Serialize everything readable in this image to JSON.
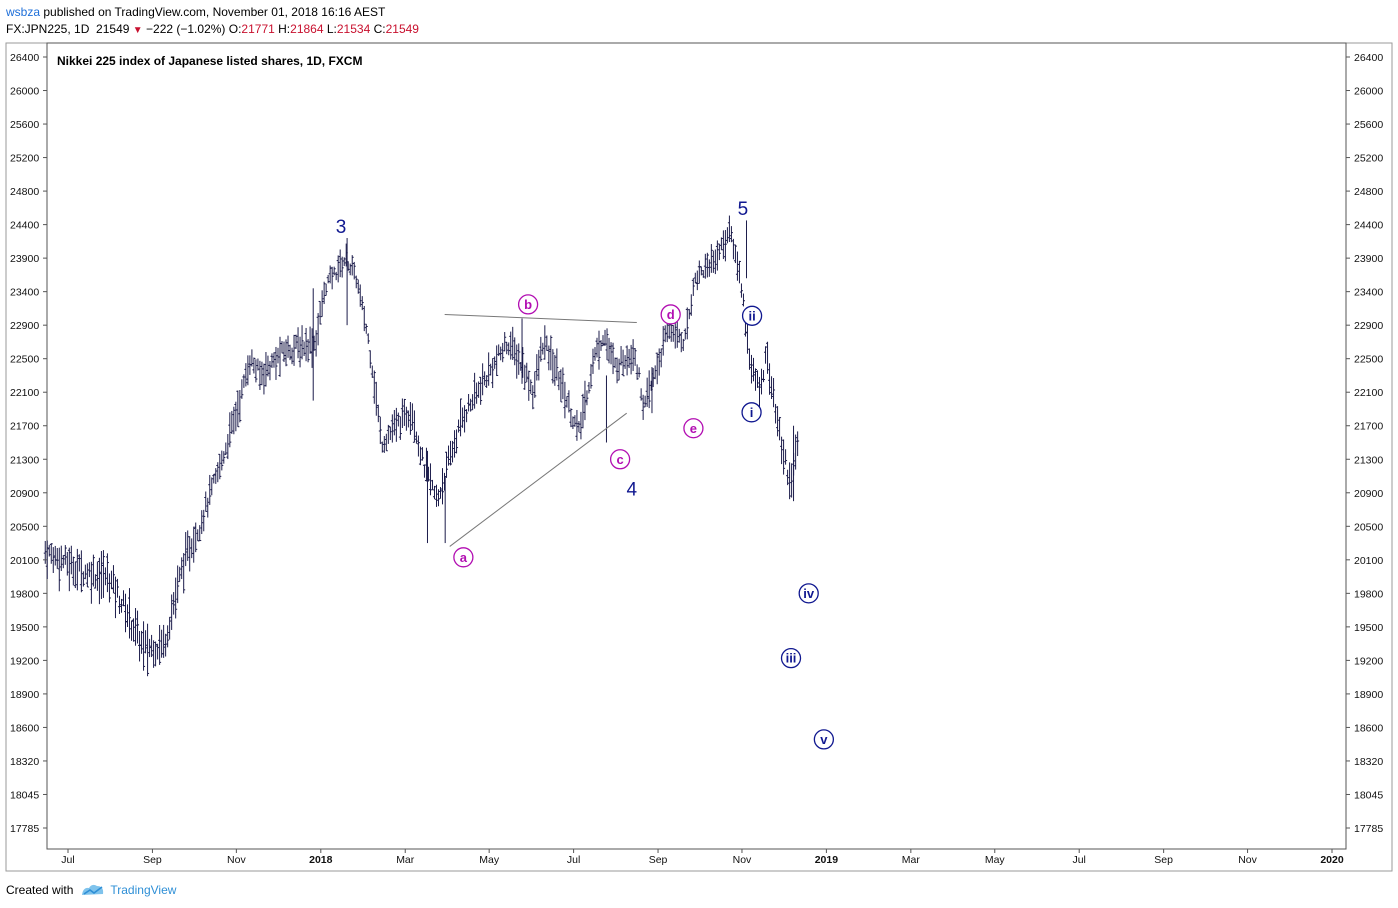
{
  "header": {
    "publisher": "wsbza",
    "published_text": "published on TradingView.com, November 01, 2018 16:16 AEST"
  },
  "ohlc": {
    "symbol": "FX:JPN225, 1D",
    "last": "21549",
    "change": "−222 (−1.02%)",
    "o_label": "O:",
    "o": "21771",
    "h_label": "H:",
    "h": "21864",
    "l_label": "L:",
    "l": "21534",
    "c_label": "C:",
    "c": "21549"
  },
  "chart_data": {
    "type": "bar",
    "subtype": "ohlc",
    "title": "Nikkei 225 index of Japanese listed shares, 1D, FXCM",
    "y_ticks": [
      26400,
      26000,
      25600,
      25200,
      24800,
      24400,
      23900,
      23400,
      22900,
      22500,
      22100,
      21700,
      21300,
      20900,
      20500,
      20100,
      19800,
      19500,
      19200,
      18900,
      18600,
      18320,
      18045,
      17785
    ],
    "x_ticks": [
      {
        "label": "Jul",
        "t": 2017.5,
        "bold": false
      },
      {
        "label": "Sep",
        "t": 2017.667,
        "bold": false
      },
      {
        "label": "Nov",
        "t": 2017.833,
        "bold": false
      },
      {
        "label": "2018",
        "t": 2018.0,
        "bold": true
      },
      {
        "label": "Mar",
        "t": 2018.167,
        "bold": false
      },
      {
        "label": "May",
        "t": 2018.333,
        "bold": false
      },
      {
        "label": "Jul",
        "t": 2018.5,
        "bold": false
      },
      {
        "label": "Sep",
        "t": 2018.667,
        "bold": false
      },
      {
        "label": "Nov",
        "t": 2018.833,
        "bold": false
      },
      {
        "label": "2019",
        "t": 2019.0,
        "bold": true
      },
      {
        "label": "Mar",
        "t": 2019.167,
        "bold": false
      },
      {
        "label": "May",
        "t": 2019.333,
        "bold": false
      },
      {
        "label": "Jul",
        "t": 2019.5,
        "bold": false
      },
      {
        "label": "Sep",
        "t": 2019.667,
        "bold": false
      },
      {
        "label": "Nov",
        "t": 2019.833,
        "bold": false
      },
      {
        "label": "2020",
        "t": 2020.0,
        "bold": true
      }
    ],
    "price_path": [
      [
        2017.455,
        20200
      ],
      [
        2017.53,
        20000
      ],
      [
        2017.58,
        19950
      ],
      [
        2017.62,
        19600
      ],
      [
        2017.65,
        19300
      ],
      [
        2017.69,
        19350
      ],
      [
        2017.73,
        20100
      ],
      [
        2017.76,
        20500
      ],
      [
        2017.8,
        21200
      ],
      [
        2017.84,
        22000
      ],
      [
        2017.86,
        22500
      ],
      [
        2017.88,
        22300
      ],
      [
        2017.93,
        22600
      ],
      [
        2017.99,
        22700
      ],
      [
        2018.01,
        23500
      ],
      [
        2018.05,
        23900
      ],
      [
        2018.07,
        23600
      ],
      [
        2018.1,
        22500
      ],
      [
        2018.12,
        21500
      ],
      [
        2018.15,
        21700
      ],
      [
        2018.18,
        21900
      ],
      [
        2018.2,
        21300
      ],
      [
        2018.23,
        20800
      ],
      [
        2018.25,
        21200
      ],
      [
        2018.28,
        21800
      ],
      [
        2018.32,
        22200
      ],
      [
        2018.37,
        22700
      ],
      [
        2018.4,
        22400
      ],
      [
        2018.42,
        22100
      ],
      [
        2018.44,
        22700
      ],
      [
        2018.47,
        22300
      ],
      [
        2018.51,
        21600
      ],
      [
        2018.54,
        22500
      ],
      [
        2018.56,
        22800
      ],
      [
        2018.58,
        22400
      ],
      [
        2018.62,
        22600
      ],
      [
        2018.64,
        21900
      ],
      [
        2018.66,
        22300
      ],
      [
        2018.69,
        22900
      ],
      [
        2018.72,
        22700
      ],
      [
        2018.74,
        23600
      ],
      [
        2018.78,
        23900
      ],
      [
        2018.81,
        24300
      ],
      [
        2018.83,
        23600
      ],
      [
        2018.85,
        22400
      ],
      [
        2018.87,
        22100
      ],
      [
        2018.88,
        22600
      ],
      [
        2018.91,
        21500
      ],
      [
        2018.93,
        21000
      ],
      [
        2018.945,
        21550
      ]
    ],
    "highlight_bars": [
      {
        "t": 2018.052,
        "low": 22900,
        "high": 24200
      },
      {
        "t": 2017.985,
        "low": 22000,
        "high": 23450
      },
      {
        "t": 2018.211,
        "low": 20300,
        "high": 21400
      },
      {
        "t": 2018.246,
        "low": 20300,
        "high": 21100
      },
      {
        "t": 2018.398,
        "low": 22200,
        "high": 23000
      },
      {
        "t": 2018.565,
        "low": 21500,
        "high": 22300
      },
      {
        "t": 2018.655,
        "low": 21850,
        "high": 22400
      },
      {
        "t": 2018.842,
        "low": 23600,
        "high": 24450
      },
      {
        "t": 2018.935,
        "low": 20800,
        "high": 21700
      }
    ],
    "trendlines": [
      {
        "t1": 2018.255,
        "p1": 20260,
        "t2": 2018.605,
        "p2": 21850
      },
      {
        "t1": 2018.245,
        "p1": 23060,
        "t2": 2018.625,
        "p2": 22940
      }
    ],
    "wave_labels": [
      {
        "text": "3",
        "t": 2018.04,
        "p": 24380,
        "style": "plain"
      },
      {
        "text": "5",
        "t": 2018.835,
        "p": 24600,
        "style": "plain"
      },
      {
        "text": "4",
        "t": 2018.615,
        "p": 20950,
        "style": "plain"
      },
      {
        "text": "a",
        "t": 2018.282,
        "p": 20130,
        "style": "circle-magenta"
      },
      {
        "text": "b",
        "t": 2018.41,
        "p": 23210,
        "style": "circle-magenta"
      },
      {
        "text": "c",
        "t": 2018.592,
        "p": 21300,
        "style": "circle-magenta"
      },
      {
        "text": "d",
        "t": 2018.692,
        "p": 23060,
        "style": "circle-magenta"
      },
      {
        "text": "e",
        "t": 2018.737,
        "p": 21670,
        "style": "circle-magenta"
      },
      {
        "text": "ii",
        "t": 2018.853,
        "p": 23040,
        "style": "circle-blue"
      },
      {
        "text": "i",
        "t": 2018.852,
        "p": 21860,
        "style": "circle-blue"
      },
      {
        "text": "iv",
        "t": 2018.965,
        "p": 19800,
        "style": "circle-blue"
      },
      {
        "text": "iii",
        "t": 2018.93,
        "p": 19220,
        "style": "circle-blue"
      },
      {
        "text": "v",
        "t": 2018.995,
        "p": 18500,
        "style": "circle-blue"
      }
    ],
    "colors": {
      "bars": "#1b1b4a",
      "magenta": "#b20eb2",
      "blue": "#101890",
      "trendline": "#787878",
      "axis": "#555555"
    }
  },
  "footer": {
    "created_with": "Created with",
    "brand": "TradingView"
  }
}
